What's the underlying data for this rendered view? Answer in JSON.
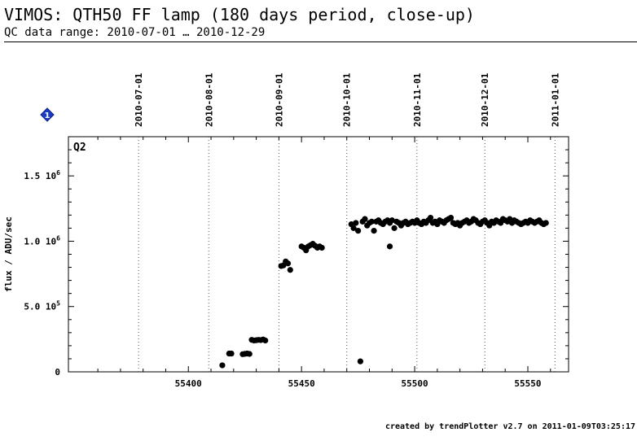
{
  "header": {
    "title": "VIMOS: QTH50 FF lamp (180 days period, close-up)",
    "subtitle": "QC data range: 2010-07-01 … 2010-12-29"
  },
  "footer": {
    "text": "created by trendPlotter v2.7 on 2011-01-09T03:25:17"
  },
  "marker": {
    "label": "1",
    "color": "#1a3cc8"
  },
  "chart_data": {
    "type": "scatter",
    "panel_label": "Q2",
    "ylabel": "flux / ADU/sec",
    "xlim": [
      55347,
      55568
    ],
    "ylim": [
      0,
      1800000
    ],
    "x_ticks": [
      55400,
      55450,
      55500,
      55550
    ],
    "y_ticks": [
      {
        "value": 0,
        "label": "0",
        "exp": ""
      },
      {
        "value": 500000,
        "label": "5.0 10",
        "exp": "5"
      },
      {
        "value": 1000000,
        "label": "1.0 10",
        "exp": "6"
      },
      {
        "value": 1500000,
        "label": "1.5 10",
        "exp": "6"
      }
    ],
    "date_lines": [
      {
        "mjd": 55378,
        "label": "2010-07-01"
      },
      {
        "mjd": 55409,
        "label": "2010-08-01"
      },
      {
        "mjd": 55440,
        "label": "2010-09-01"
      },
      {
        "mjd": 55470,
        "label": "2010-10-01"
      },
      {
        "mjd": 55501,
        "label": "2010-11-01"
      },
      {
        "mjd": 55531,
        "label": "2010-12-01"
      },
      {
        "mjd": 55562,
        "label": "2011-01-01"
      }
    ],
    "point_color": "#000000",
    "x": [
      55415,
      55418,
      55419,
      55424,
      55425,
      55426,
      55427,
      55428,
      55429,
      55430,
      55431,
      55432,
      55433,
      55434,
      55441,
      55442,
      55443,
      55444,
      55445,
      55450,
      55451,
      55452,
      55453,
      55454,
      55455,
      55456,
      55457,
      55458,
      55459,
      55472,
      55473,
      55474,
      55475,
      55476,
      55477,
      55478,
      55479,
      55480,
      55481,
      55482,
      55483,
      55484,
      55485,
      55486,
      55487,
      55488,
      55489,
      55490,
      55491,
      55492,
      55493,
      55494,
      55495,
      55496,
      55497,
      55498,
      55499,
      55500,
      55501,
      55502,
      55503,
      55504,
      55505,
      55506,
      55507,
      55508,
      55509,
      55510,
      55511,
      55512,
      55513,
      55514,
      55515,
      55516,
      55517,
      55518,
      55519,
      55520,
      55521,
      55522,
      55523,
      55524,
      55525,
      55526,
      55527,
      55528,
      55529,
      55530,
      55531,
      55532,
      55533,
      55534,
      55535,
      55536,
      55537,
      55538,
      55539,
      55540,
      55541,
      55542,
      55543,
      55544,
      55545,
      55546,
      55547,
      55548,
      55549,
      55550,
      55551,
      55552,
      55553,
      55554,
      55555,
      55556,
      55557,
      55558,
      55489
    ],
    "y": [
      50000,
      140000,
      140000,
      135000,
      138000,
      140000,
      137000,
      245000,
      240000,
      242000,
      245000,
      243000,
      248000,
      240000,
      810000,
      815000,
      845000,
      830000,
      780000,
      960000,
      950000,
      930000,
      960000,
      970000,
      980000,
      965000,
      950000,
      960000,
      950000,
      1130000,
      1100000,
      1140000,
      1080000,
      80000,
      1150000,
      1170000,
      1120000,
      1140000,
      1150000,
      1080000,
      1150000,
      1160000,
      1140000,
      1130000,
      1150000,
      1160000,
      1140000,
      1160000,
      1100000,
      1150000,
      1140000,
      1120000,
      1140000,
      1150000,
      1130000,
      1140000,
      1150000,
      1140000,
      1160000,
      1140000,
      1130000,
      1150000,
      1140000,
      1160000,
      1180000,
      1140000,
      1150000,
      1130000,
      1160000,
      1150000,
      1140000,
      1160000,
      1170000,
      1180000,
      1140000,
      1130000,
      1140000,
      1120000,
      1140000,
      1150000,
      1160000,
      1140000,
      1150000,
      1170000,
      1160000,
      1140000,
      1130000,
      1150000,
      1160000,
      1140000,
      1120000,
      1150000,
      1140000,
      1160000,
      1150000,
      1140000,
      1170000,
      1160000,
      1150000,
      1170000,
      1140000,
      1160000,
      1150000,
      1140000,
      1130000,
      1140000,
      1150000,
      1140000,
      1160000,
      1150000,
      1140000,
      1150000,
      1160000,
      1140000,
      1130000,
      1140000,
      960000
    ]
  }
}
